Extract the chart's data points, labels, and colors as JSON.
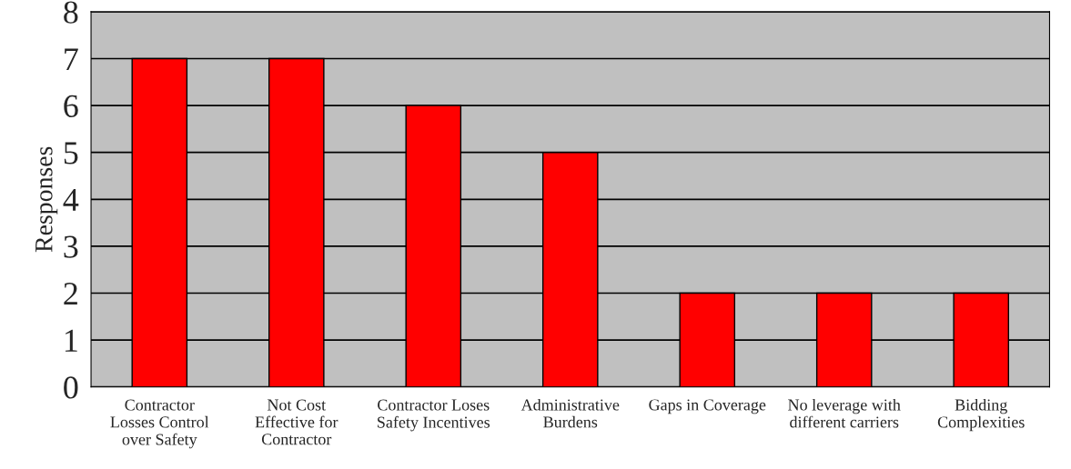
{
  "chart_data": {
    "type": "bar",
    "ylabel": "Responses",
    "categories": [
      "Contractor\nLosses Control\nover Safety",
      "Not Cost\nEffective for\nContractor",
      "Contractor Loses\nSafety Incentives",
      "Administrative\nBurdens",
      "Gaps in Coverage",
      "No leverage with\ndifferent carriers",
      "Bidding\nComplexities"
    ],
    "values": [
      7,
      7,
      6,
      5,
      2,
      2,
      2
    ],
    "color": "#ff0000",
    "ylim": [
      0,
      8
    ],
    "yticks": [
      0,
      1,
      2,
      3,
      4,
      5,
      6,
      7,
      8
    ],
    "grid": "y"
  }
}
